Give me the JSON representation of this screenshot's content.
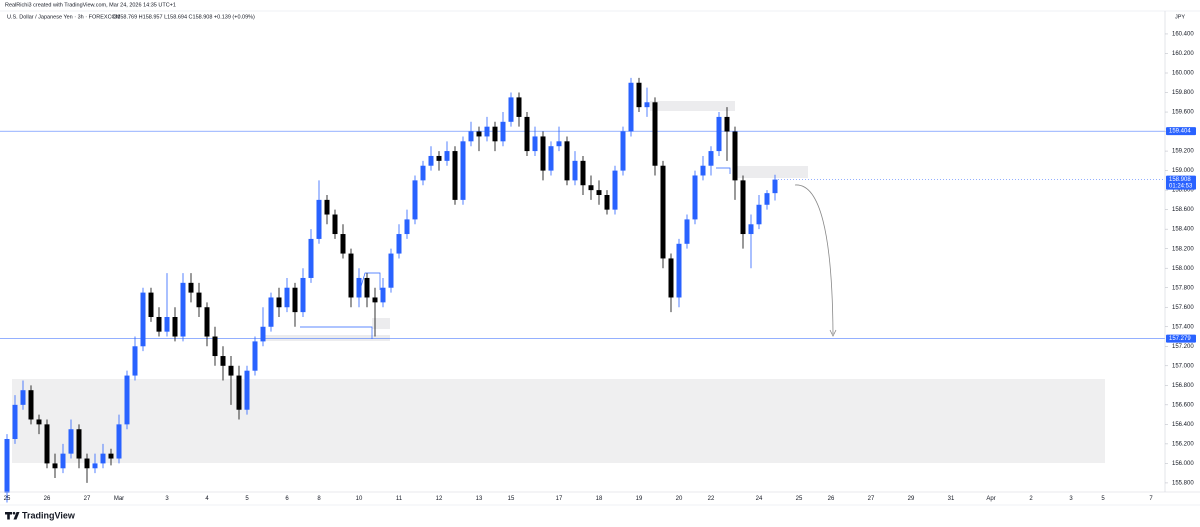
{
  "chart_data": {
    "type": "candlestick",
    "credit": "RealRichi3 created with TradingView.com, Mar 24, 2026 14:35 UTC+1",
    "symbol": "U.S. Dollar / Japanese Yen · 3h · FOREXCOM",
    "ohlc_readout": "O158.769 H158.957 L158.694 C158.908 +0.139 (+0.09%)",
    "currency": "JPY",
    "brand": "TradingView",
    "countdown": "01:24:53",
    "up_color": "#2962ff",
    "down_color": "#000000",
    "ylim": [
      155.707,
      160.625
    ],
    "grid": false,
    "yticks": [
      {
        "value": 155.8,
        "label": "155.800"
      },
      {
        "value": 156.0,
        "label": "156.000"
      },
      {
        "value": 156.2,
        "label": "156.200"
      },
      {
        "value": 156.4,
        "label": "156.400"
      },
      {
        "value": 156.6,
        "label": "156.600"
      },
      {
        "value": 156.8,
        "label": "156.800"
      },
      {
        "value": 157.0,
        "label": "157.000"
      },
      {
        "value": 157.2,
        "label": "157.200"
      },
      {
        "value": 157.4,
        "label": "157.400"
      },
      {
        "value": 157.6,
        "label": "157.600"
      },
      {
        "value": 157.8,
        "label": "157.800"
      },
      {
        "value": 158.0,
        "label": "158.000"
      },
      {
        "value": 158.2,
        "label": "158.200"
      },
      {
        "value": 158.4,
        "label": "158.400"
      },
      {
        "value": 158.6,
        "label": "158.600"
      },
      {
        "value": 158.8,
        "label": "158.800"
      },
      {
        "value": 159.0,
        "label": "159.000"
      },
      {
        "value": 159.2,
        "label": "159.200"
      },
      {
        "value": 159.4,
        "label": "159.400"
      },
      {
        "value": 159.6,
        "label": "159.600"
      },
      {
        "value": 159.8,
        "label": "159.800"
      },
      {
        "value": 160.0,
        "label": "160.000"
      },
      {
        "value": 160.2,
        "label": "160.200"
      },
      {
        "value": 160.4,
        "label": "160.400"
      }
    ],
    "price_lines": [
      {
        "value": 159.404,
        "color": "#2962ff"
      },
      {
        "value": 157.279,
        "color": "#2962ff"
      }
    ],
    "categories": [
      "25",
      null,
      null,
      null,
      null,
      "26",
      null,
      null,
      null,
      null,
      "27",
      null,
      null,
      null,
      "Mar",
      null,
      null,
      null,
      null,
      null,
      "3",
      null,
      null,
      null,
      null,
      "4",
      null,
      null,
      null,
      null,
      "5",
      null,
      null,
      null,
      null,
      "6",
      null,
      null,
      null,
      "8",
      null,
      null,
      null,
      null,
      "10",
      null,
      null,
      null,
      null,
      "11",
      null,
      null,
      null,
      null,
      "12",
      null,
      null,
      null,
      null,
      "13",
      null,
      null,
      null,
      "15",
      null,
      null,
      null,
      null,
      null,
      "17",
      null,
      null,
      null,
      null,
      "18",
      null,
      null,
      null,
      null,
      "19",
      null,
      null,
      null,
      null,
      "20",
      null,
      null,
      null,
      "22",
      null,
      null,
      null,
      null,
      null,
      "24",
      null,
      null,
      null,
      null,
      "25",
      null,
      null,
      null,
      "26",
      null,
      null,
      null,
      null,
      "27",
      null,
      null,
      null,
      null,
      "29",
      null,
      null,
      null,
      null,
      "31",
      null,
      null,
      null,
      null,
      "Apr",
      null,
      null,
      null,
      null,
      "2",
      null,
      null,
      null,
      null,
      "3",
      null,
      null,
      null,
      "5",
      null,
      null,
      null,
      null,
      null,
      "7"
    ],
    "ohlc": [
      [
        155.7,
        156.3,
        155.6,
        156.25
      ],
      [
        156.25,
        156.7,
        156.2,
        156.6
      ],
      [
        156.6,
        156.85,
        156.55,
        156.75
      ],
      [
        156.75,
        156.8,
        156.4,
        156.45
      ],
      [
        156.45,
        156.5,
        156.3,
        156.4
      ],
      [
        156.4,
        156.45,
        155.95,
        156.0
      ],
      [
        156.0,
        156.1,
        155.85,
        155.95
      ],
      [
        155.95,
        156.2,
        155.9,
        156.1
      ],
      [
        156.1,
        156.45,
        156.05,
        156.35
      ],
      [
        156.35,
        156.4,
        155.95,
        156.05
      ],
      [
        156.05,
        156.1,
        155.8,
        155.95
      ],
      [
        155.95,
        156.1,
        155.9,
        156.0
      ],
      [
        156.0,
        156.2,
        155.95,
        156.1
      ],
      [
        156.1,
        156.15,
        155.98,
        156.05
      ],
      [
        156.05,
        156.5,
        156.0,
        156.4
      ],
      [
        156.4,
        156.95,
        156.35,
        156.9
      ],
      [
        156.9,
        157.3,
        156.85,
        157.2
      ],
      [
        157.2,
        157.8,
        157.15,
        157.75
      ],
      [
        157.75,
        157.8,
        157.45,
        157.5
      ],
      [
        157.5,
        157.6,
        157.3,
        157.35
      ],
      [
        157.35,
        157.95,
        157.3,
        157.5
      ],
      [
        157.5,
        157.6,
        157.25,
        157.3
      ],
      [
        157.3,
        157.95,
        157.25,
        157.85
      ],
      [
        157.85,
        157.95,
        157.65,
        157.75
      ],
      [
        157.75,
        157.85,
        157.5,
        157.6
      ],
      [
        157.6,
        157.65,
        157.2,
        157.3
      ],
      [
        157.3,
        157.4,
        157.0,
        157.1
      ],
      [
        157.1,
        157.2,
        156.85,
        157.0
      ],
      [
        157.0,
        157.1,
        156.6,
        156.9
      ],
      [
        156.9,
        157.0,
        156.45,
        156.55
      ],
      [
        156.55,
        157.0,
        156.5,
        156.95
      ],
      [
        156.95,
        157.3,
        156.9,
        157.25
      ],
      [
        157.25,
        157.6,
        157.2,
        157.4
      ],
      [
        157.4,
        157.75,
        157.35,
        157.7
      ],
      [
        157.7,
        157.8,
        157.5,
        157.6
      ],
      [
        157.6,
        157.9,
        157.55,
        157.8
      ],
      [
        157.8,
        157.85,
        157.4,
        157.55
      ],
      [
        157.55,
        158.0,
        157.5,
        157.9
      ],
      [
        157.9,
        158.4,
        157.85,
        158.3
      ],
      [
        158.3,
        158.9,
        158.25,
        158.7
      ],
      [
        158.7,
        158.75,
        158.45,
        158.55
      ],
      [
        158.55,
        158.6,
        158.3,
        158.35
      ],
      [
        158.35,
        158.45,
        158.1,
        158.15
      ],
      [
        158.15,
        158.2,
        157.6,
        157.7
      ],
      [
        157.7,
        158.0,
        157.6,
        157.9
      ],
      [
        157.9,
        157.95,
        157.6,
        157.7
      ],
      [
        157.7,
        157.8,
        157.3,
        157.65
      ],
      [
        157.65,
        157.9,
        157.6,
        157.8
      ],
      [
        157.8,
        158.2,
        157.75,
        158.15
      ],
      [
        158.15,
        158.45,
        158.1,
        158.35
      ],
      [
        158.35,
        158.6,
        158.3,
        158.5
      ],
      [
        158.5,
        158.95,
        158.45,
        158.9
      ],
      [
        158.9,
        159.1,
        158.85,
        159.05
      ],
      [
        159.05,
        159.25,
        159.0,
        159.15
      ],
      [
        159.15,
        159.2,
        159.0,
        159.1
      ],
      [
        159.1,
        159.3,
        159.05,
        159.2
      ],
      [
        159.2,
        159.25,
        158.65,
        158.7
      ],
      [
        158.7,
        159.35,
        158.65,
        159.3
      ],
      [
        159.3,
        159.5,
        159.25,
        159.4
      ],
      [
        159.4,
        159.45,
        159.2,
        159.35
      ],
      [
        159.35,
        159.55,
        159.3,
        159.45
      ],
      [
        159.45,
        159.5,
        159.2,
        159.3
      ],
      [
        159.3,
        159.6,
        159.25,
        159.5
      ],
      [
        159.5,
        159.8,
        159.45,
        159.75
      ],
      [
        159.75,
        159.8,
        159.45,
        159.55
      ],
      [
        159.55,
        159.6,
        159.15,
        159.2
      ],
      [
        159.2,
        159.45,
        159.15,
        159.35
      ],
      [
        159.35,
        159.4,
        158.9,
        159.0
      ],
      [
        159.0,
        159.3,
        158.95,
        159.25
      ],
      [
        159.25,
        159.45,
        159.2,
        159.3
      ],
      [
        159.3,
        159.35,
        158.85,
        158.9
      ],
      [
        158.9,
        159.2,
        158.85,
        159.1
      ],
      [
        159.1,
        159.15,
        158.75,
        158.85
      ],
      [
        158.85,
        158.95,
        158.7,
        158.8
      ],
      [
        158.8,
        158.9,
        158.65,
        158.75
      ],
      [
        158.75,
        158.8,
        158.55,
        158.6
      ],
      [
        158.6,
        159.05,
        158.55,
        159.0
      ],
      [
        159.0,
        159.45,
        158.95,
        159.4
      ],
      [
        159.4,
        159.95,
        159.35,
        159.9
      ],
      [
        159.9,
        159.95,
        159.6,
        159.65
      ],
      [
        159.65,
        159.85,
        159.55,
        159.7
      ],
      [
        159.7,
        159.75,
        158.95,
        159.05
      ],
      [
        159.05,
        159.1,
        158.0,
        158.1
      ],
      [
        158.1,
        158.15,
        157.55,
        157.7
      ],
      [
        157.7,
        158.3,
        157.6,
        158.25
      ],
      [
        158.25,
        158.55,
        158.2,
        158.5
      ],
      [
        158.5,
        159.0,
        158.45,
        158.95
      ],
      [
        158.95,
        159.15,
        158.9,
        159.05
      ],
      [
        159.05,
        159.25,
        158.95,
        159.2
      ],
      [
        159.2,
        159.6,
        159.15,
        159.55
      ],
      [
        159.55,
        159.65,
        159.1,
        159.4
      ],
      [
        159.4,
        159.45,
        158.7,
        158.9
      ],
      [
        158.9,
        158.95,
        158.2,
        158.35
      ],
      [
        158.35,
        158.55,
        158.0,
        158.45
      ],
      [
        158.45,
        158.75,
        158.4,
        158.65
      ],
      [
        158.65,
        158.8,
        158.6,
        158.769
      ],
      [
        158.769,
        158.957,
        158.694,
        158.908
      ],
      null,
      null,
      null,
      null,
      null,
      null,
      null,
      null,
      null,
      null,
      null,
      null,
      null,
      null,
      null,
      null,
      null,
      null,
      null,
      null,
      null,
      null,
      null,
      null,
      null,
      null,
      null,
      null,
      null,
      null,
      null,
      null,
      null,
      null,
      null,
      null,
      null,
      null,
      null,
      null,
      null,
      null,
      null,
      null,
      null,
      null,
      null
    ]
  }
}
